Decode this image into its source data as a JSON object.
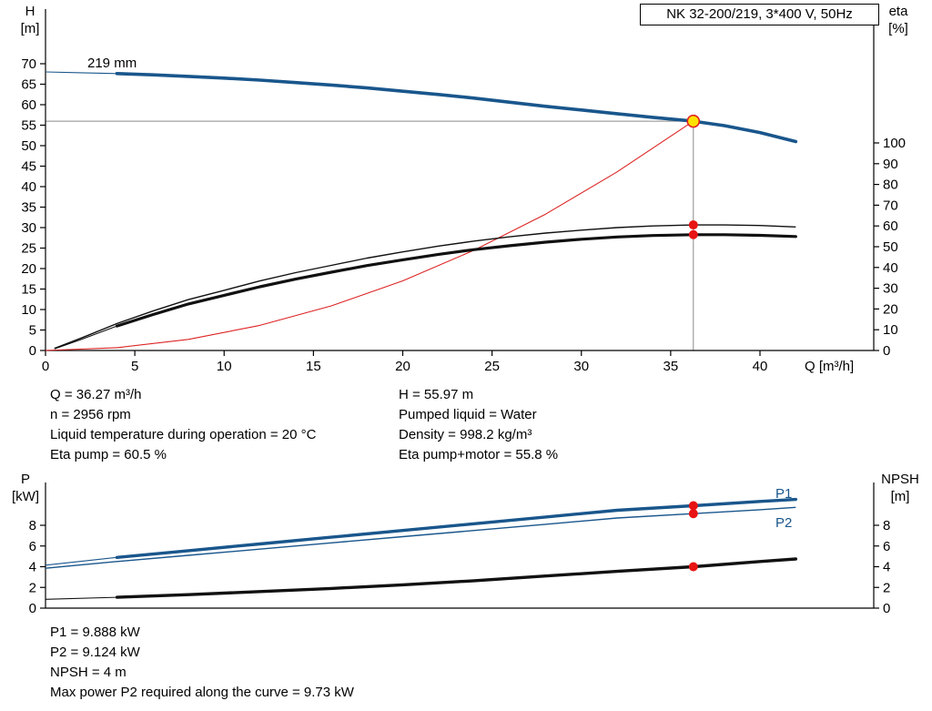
{
  "chart_data": [
    {
      "type": "line",
      "title": "NK 32-200/219, 3*400 V, 50Hz",
      "xlabel": "Q [m³/h]",
      "axis_labels": {
        "left": [
          "H",
          "[m]"
        ],
        "right": [
          "eta",
          "[%]"
        ]
      },
      "impeller_label": "219 mm",
      "x_ticks": [
        0,
        5,
        10,
        15,
        20,
        25,
        30,
        35,
        40
      ],
      "y_ticks_left": [
        0,
        5,
        10,
        15,
        20,
        25,
        30,
        35,
        40,
        45,
        50,
        55,
        60,
        65,
        70
      ],
      "y_ticks_right": [
        0,
        10,
        20,
        30,
        40,
        50,
        60,
        70,
        80,
        90,
        100
      ],
      "xlim": [
        0,
        42.5
      ],
      "ylim_left": [
        0,
        83
      ],
      "ylim_right": [
        0,
        169
      ],
      "grid": false,
      "crosshair": {
        "x": 36.27,
        "y": 55.97,
        "axis": "left"
      },
      "series": [
        {
          "name": "system-curve",
          "axis": "left",
          "color": "#dd2222",
          "width": 1.1,
          "x": [
            0,
            4,
            8,
            12,
            16,
            20,
            24,
            28,
            32,
            36.27
          ],
          "y": [
            0,
            0.68,
            2.72,
            6.13,
            10.89,
            17.0,
            24.5,
            33.3,
            43.6,
            55.97
          ]
        },
        {
          "name": "eta-pump-curve",
          "axis": "right",
          "color": "#111111",
          "width": 1.4,
          "x": [
            0.5,
            2,
            4,
            6,
            8,
            10,
            12,
            14,
            16,
            18,
            20,
            22,
            24,
            26,
            28,
            30,
            32,
            34,
            36.27,
            38,
            40,
            42
          ],
          "y": [
            1,
            6,
            13,
            19,
            24.5,
            29,
            33.5,
            37.5,
            41,
            44.5,
            47.5,
            50.3,
            52.7,
            54.8,
            56.6,
            58,
            59.2,
            60,
            60.5,
            60.5,
            60.2,
            59.5
          ]
        },
        {
          "name": "eta-pump-motor-curve",
          "axis": "right",
          "color": "#111111",
          "width": 3.2,
          "thin_until": 4,
          "x": [
            0.5,
            2,
            4,
            6,
            8,
            10,
            12,
            14,
            16,
            18,
            20,
            22,
            24,
            26,
            28,
            30,
            32,
            34,
            36.27,
            38,
            40,
            42
          ],
          "y": [
            0.8,
            5.3,
            11.8,
            17.3,
            22.4,
            26.6,
            30.7,
            34.4,
            37.7,
            40.9,
            43.7,
            46.3,
            48.6,
            50.5,
            52.2,
            53.6,
            54.7,
            55.4,
            55.8,
            55.8,
            55.5,
            54.9
          ]
        },
        {
          "name": "head-curve-219mm",
          "axis": "left",
          "color": "#19568c",
          "width": 3.6,
          "thin_until": 4,
          "x": [
            0,
            2,
            4,
            6,
            8,
            10,
            12,
            14,
            16,
            18,
            20,
            22,
            24,
            26,
            28,
            30,
            32,
            34,
            36.27,
            38,
            40,
            42
          ],
          "y": [
            68,
            67.8,
            67.6,
            67.3,
            66.9,
            66.5,
            66.0,
            65.4,
            64.8,
            64.1,
            63.3,
            62.5,
            61.6,
            60.6,
            59.6,
            58.7,
            57.8,
            56.9,
            55.97,
            54.9,
            53.2,
            51.0
          ]
        }
      ],
      "markers": [
        {
          "name": "duty-point",
          "style": "yellow",
          "axis": "left",
          "x": 36.27,
          "y": 55.97
        },
        {
          "name": "eta-pump-duty-dot",
          "style": "red",
          "axis": "right",
          "x": 36.27,
          "y": 60.5
        },
        {
          "name": "eta-pump-motor-duty-dot",
          "style": "red",
          "axis": "right",
          "x": 36.27,
          "y": 55.8
        }
      ]
    },
    {
      "type": "line",
      "title": "",
      "xlabel": "",
      "axis_labels": {
        "left": [
          "P",
          "[kW]"
        ],
        "right": [
          "NPSH",
          "[m]"
        ]
      },
      "p1_label": "P1",
      "p2_label": "P2",
      "x_ticks": [],
      "y_ticks_left": [
        0,
        2,
        4,
        6,
        8
      ],
      "y_ticks_right": [
        0,
        2,
        4,
        6,
        8
      ],
      "xlim": [
        0,
        42.5
      ],
      "ylim_left": [
        0,
        13.5
      ],
      "ylim_right": [
        0,
        13.5
      ],
      "grid": false,
      "series": [
        {
          "name": "p1-curve",
          "axis": "left",
          "color": "#19568c",
          "width": 3.4,
          "thin_until": 4,
          "x": [
            0,
            4,
            8,
            12,
            16,
            20,
            24,
            28,
            32,
            36.27,
            40,
            42
          ],
          "y": [
            4.15,
            4.9,
            5.55,
            6.2,
            6.85,
            7.5,
            8.15,
            8.8,
            9.45,
            9.888,
            10.3,
            10.5
          ]
        },
        {
          "name": "p2-curve",
          "axis": "left",
          "color": "#19568c",
          "width": 1.4,
          "x": [
            0,
            4,
            8,
            12,
            16,
            20,
            24,
            28,
            32,
            36.27,
            40,
            42
          ],
          "y": [
            3.85,
            4.5,
            5.1,
            5.7,
            6.3,
            6.9,
            7.5,
            8.1,
            8.7,
            9.124,
            9.5,
            9.73
          ]
        },
        {
          "name": "npsh-curve",
          "axis": "right",
          "color": "#111111",
          "width": 3.4,
          "thin_until": 4,
          "x": [
            0,
            4,
            8,
            12,
            16,
            20,
            24,
            28,
            32,
            36.27,
            40,
            42
          ],
          "y": [
            0.85,
            1.05,
            1.3,
            1.6,
            1.9,
            2.25,
            2.65,
            3.1,
            3.55,
            4.0,
            4.5,
            4.75
          ]
        }
      ],
      "markers": [
        {
          "name": "p1-duty-dot",
          "style": "red",
          "axis": "left",
          "x": 36.27,
          "y": 9.888
        },
        {
          "name": "p2-duty-dot",
          "style": "red",
          "axis": "left",
          "x": 36.27,
          "y": 9.124
        },
        {
          "name": "npsh-duty-dot",
          "style": "red",
          "axis": "right",
          "x": 36.27,
          "y": 4.0
        }
      ]
    }
  ],
  "info_top": {
    "left": [
      "Q = 36.27 m³/h",
      "n = 2956 rpm",
      "Liquid temperature during operation = 20 °C",
      "Eta pump = 60.5 %"
    ],
    "right": [
      "H = 55.97 m",
      "Pumped liquid = Water",
      "Density = 998.2 kg/m³",
      "Eta pump+motor = 55.8 %"
    ]
  },
  "info_bottom": [
    "P1 = 9.888 kW",
    "P2 = 9.124 kW",
    "NPSH = 4 m",
    "Max power P2 required along the curve = 9.73 kW"
  ]
}
